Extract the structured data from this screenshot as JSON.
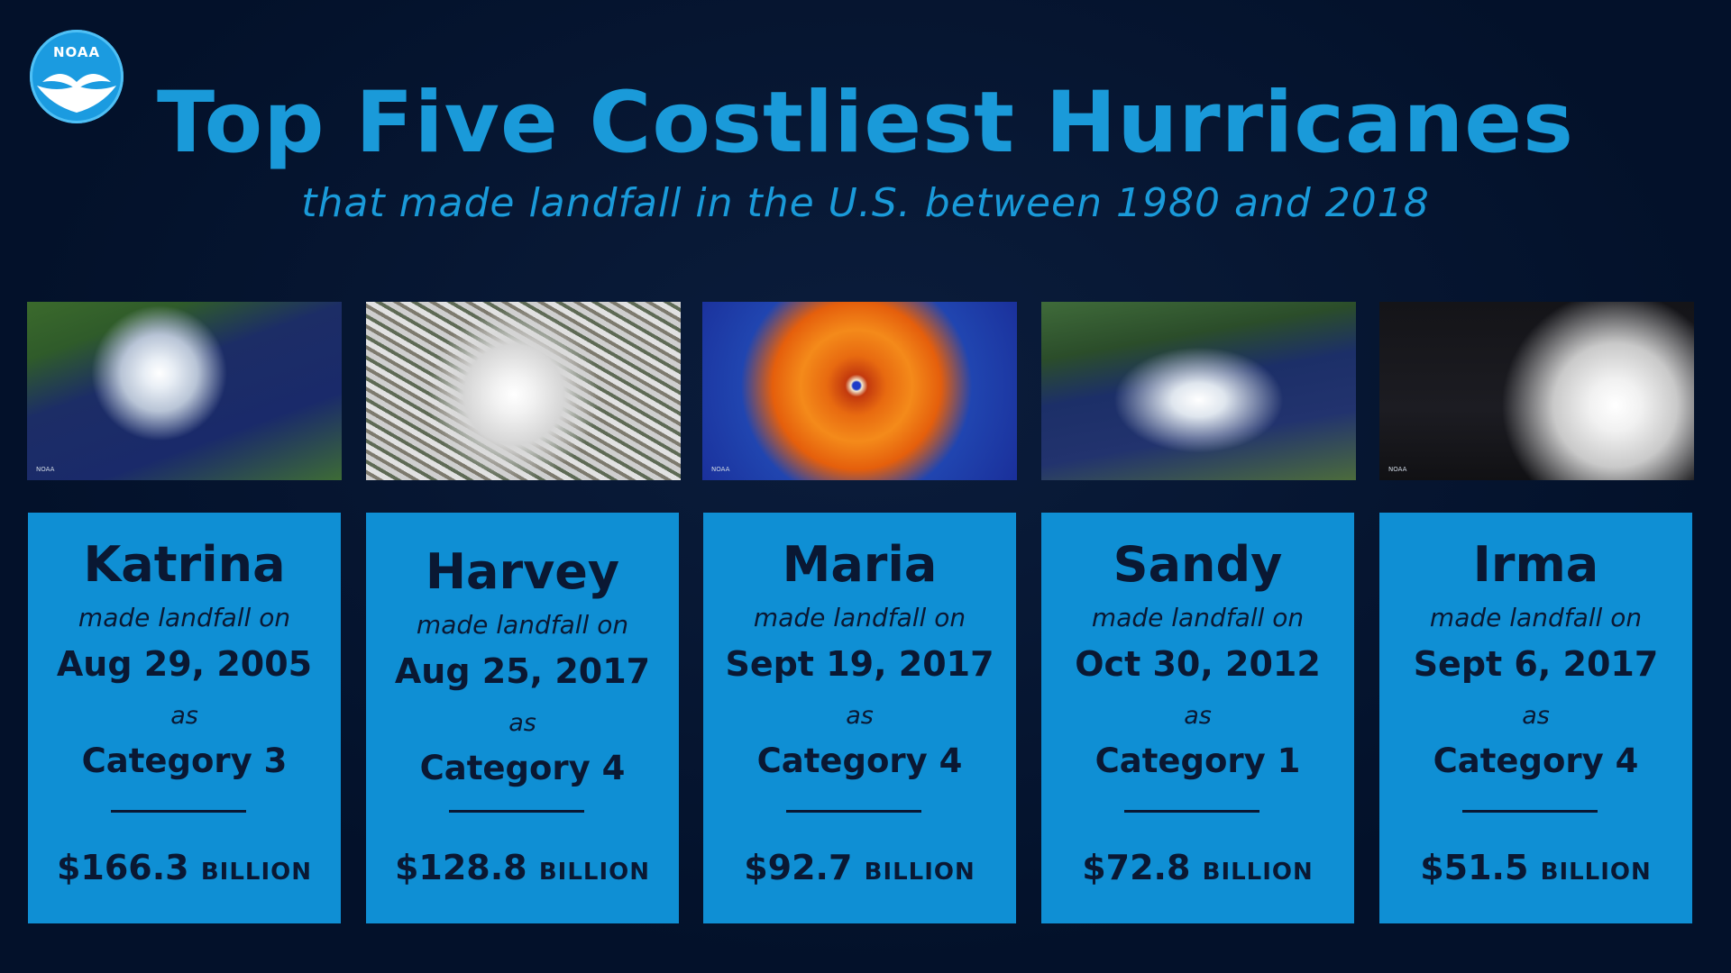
{
  "logo": {
    "text": "NOAA"
  },
  "title": "Top Five Costliest Hurricanes",
  "subtitle": "that made landfall in the U.S. between 1980 and 2018",
  "image_watermark": "NOAA",
  "hurricanes": [
    {
      "name": "Katrina",
      "made": "made landfall on",
      "date": "Aug 29, 2005",
      "as": "as",
      "category": "Category 3",
      "cost": "$166.3",
      "unit": "BILLION"
    },
    {
      "name": "Harvey",
      "made": "made landfall on",
      "date": "Aug 25, 2017",
      "as": "as",
      "category": "Category 4",
      "cost": "$128.8",
      "unit": "BILLION"
    },
    {
      "name": "Maria",
      "made": "made landfall on",
      "date": "Sept 19, 2017",
      "as": "as",
      "category": "Category 4",
      "cost": "$92.7",
      "unit": "BILLION"
    },
    {
      "name": "Sandy",
      "made": "made landfall on",
      "date": "Oct 30, 2012",
      "as": "as",
      "category": "Category 1",
      "cost": "$72.8",
      "unit": "BILLION"
    },
    {
      "name": "Irma",
      "made": "made landfall on",
      "date": "Sept 6, 2017",
      "as": "as",
      "category": "Category 4",
      "cost": "$51.5",
      "unit": "BILLION"
    }
  ],
  "colors": {
    "background": "#03112a",
    "accent": "#1a9ad9",
    "card": "#0f8fd4",
    "text_dark": "#0a1833"
  }
}
